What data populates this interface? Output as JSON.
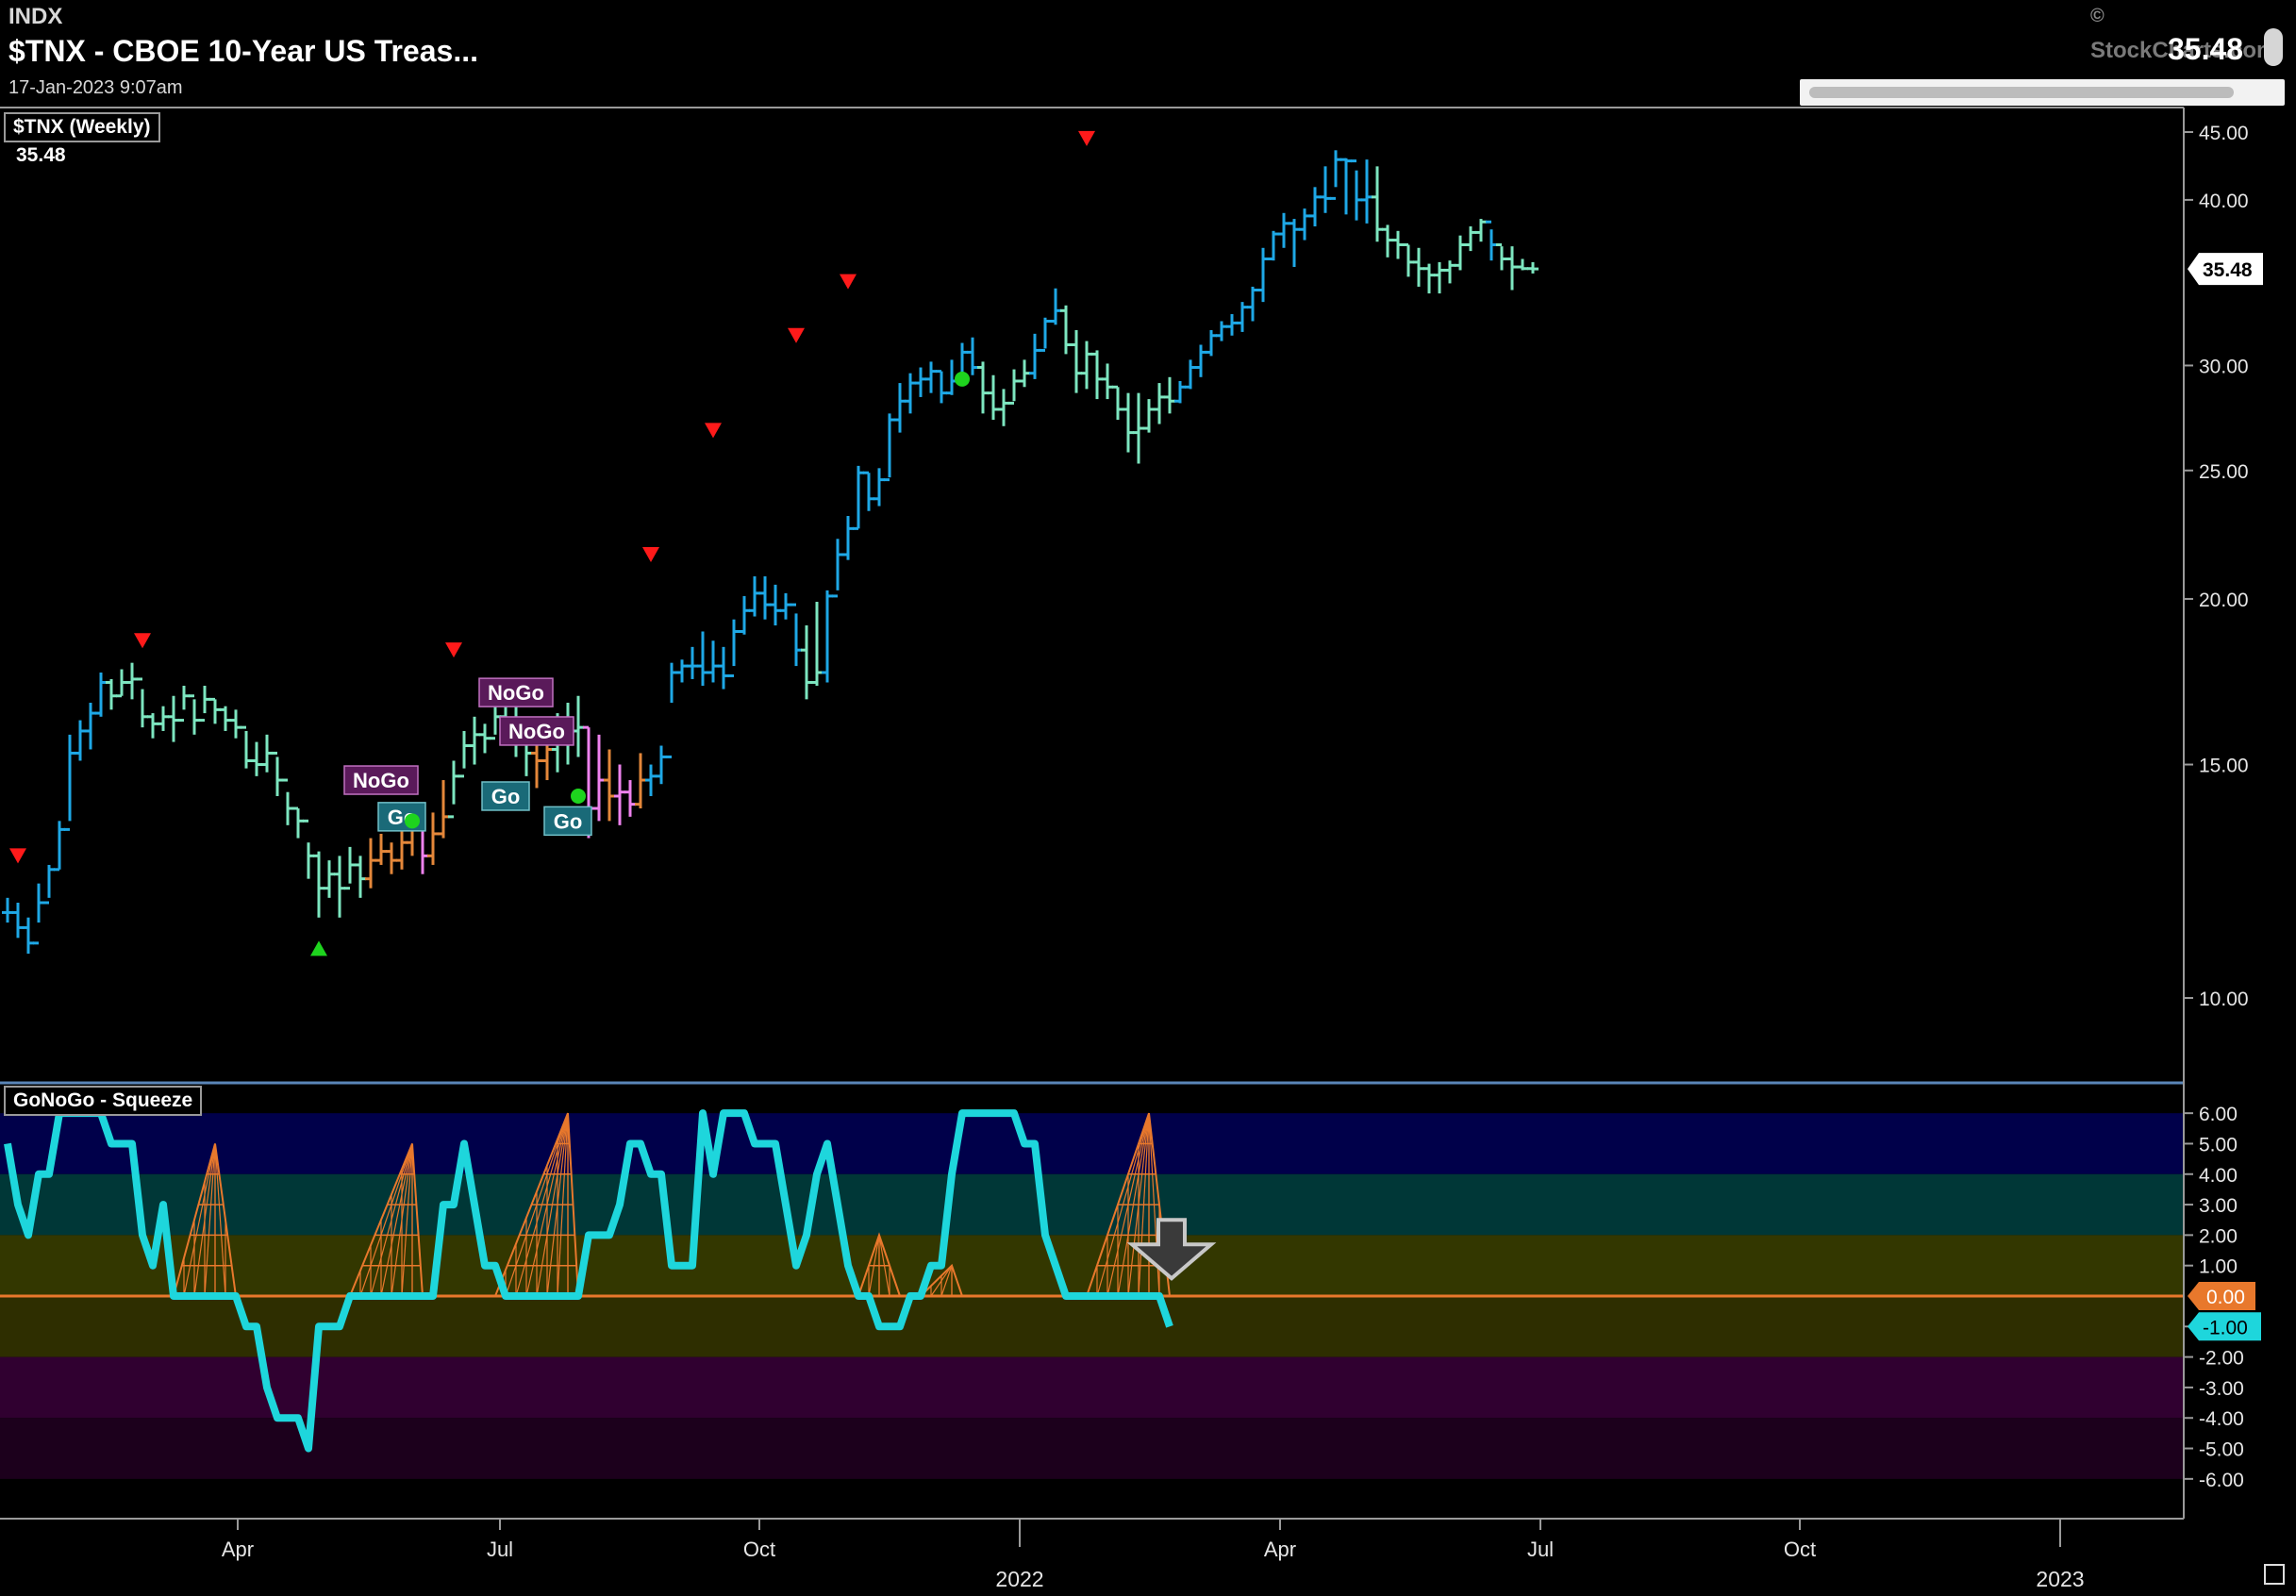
{
  "header": {
    "exchange": "INDX",
    "title": "$TNX - CBOE 10-Year US Treas...",
    "datetime": "17-Jan-2023 9:07am",
    "copyright": "©",
    "brand": "StockCharts.com",
    "last_price": "35.48"
  },
  "colors": {
    "go_strong": "#1ea8e6",
    "go_weak": "#7de6c0",
    "nogo_weak": "#e4873a",
    "nogo_strong": "#ee82ee",
    "signal_down": "#ff1a1a",
    "signal_up": "#1ed41e",
    "osc_line": "#1ed6dc",
    "zero_line": "#e8782c",
    "squeeze_grid": "#e8782c"
  },
  "chart_data": [
    {
      "type": "ohlc",
      "legend": "$TNX (Weekly)",
      "legend_value": "35.48",
      "y_scale": "log",
      "ylim": [
        8.7,
        46.5
      ],
      "y_ticks": [
        "45.00",
        "40.00",
        "30.00",
        "25.00",
        "20.00",
        "15.00",
        "10.00"
      ],
      "y_tick_values": [
        45,
        40,
        30,
        25,
        20,
        15,
        10
      ],
      "last_value_label": "35.48",
      "last_value": 35.48,
      "x_month_labels": [
        "Apr",
        "Jul",
        "Oct",
        "Apr",
        "Jul",
        "Oct"
      ],
      "x_year_labels": [
        "2022",
        "2023"
      ],
      "points": [
        [
          11.9,
          11.4,
          11.6,
          "b"
        ],
        [
          11.8,
          11.1,
          11.3,
          "b"
        ],
        [
          11.5,
          10.8,
          11.0,
          "b"
        ],
        [
          12.2,
          11.4,
          11.8,
          "b"
        ],
        [
          12.6,
          11.9,
          12.5,
          "b"
        ],
        [
          13.6,
          12.5,
          13.4,
          "b"
        ],
        [
          15.8,
          13.6,
          15.3,
          "b"
        ],
        [
          16.2,
          15.1,
          15.9,
          "b"
        ],
        [
          16.7,
          15.4,
          16.4,
          "b"
        ],
        [
          17.6,
          16.3,
          17.3,
          "b"
        ],
        [
          17.4,
          16.5,
          16.9,
          "g"
        ],
        [
          17.7,
          16.9,
          17.3,
          "g"
        ],
        [
          17.9,
          16.8,
          17.4,
          "g"
        ],
        [
          17.1,
          16.0,
          16.3,
          "g"
        ],
        [
          16.4,
          15.7,
          16.1,
          "g"
        ],
        [
          16.6,
          15.9,
          16.3,
          "g"
        ],
        [
          16.9,
          15.6,
          16.2,
          "g"
        ],
        [
          17.2,
          16.5,
          16.9,
          "g"
        ],
        [
          16.8,
          15.8,
          16.2,
          "g"
        ],
        [
          17.2,
          16.4,
          16.8,
          "g"
        ],
        [
          16.8,
          16.1,
          16.5,
          "g"
        ],
        [
          16.6,
          15.9,
          16.2,
          "g"
        ],
        [
          16.5,
          15.7,
          16.0,
          "g"
        ],
        [
          15.9,
          14.9,
          15.1,
          "g"
        ],
        [
          15.6,
          14.7,
          15.0,
          "g"
        ],
        [
          15.8,
          14.8,
          15.3,
          "g"
        ],
        [
          15.2,
          14.2,
          14.6,
          "g"
        ],
        [
          14.3,
          13.5,
          13.9,
          "g"
        ],
        [
          13.9,
          13.2,
          13.6,
          "g"
        ],
        [
          13.1,
          12.3,
          12.8,
          "g"
        ],
        [
          12.9,
          11.5,
          12.1,
          "g"
        ],
        [
          12.7,
          11.9,
          12.4,
          "g"
        ],
        [
          12.8,
          11.5,
          12.1,
          "g"
        ],
        [
          13.0,
          12.2,
          12.6,
          "g"
        ],
        [
          12.8,
          11.9,
          12.3,
          "g"
        ],
        [
          13.2,
          12.1,
          12.7,
          "o"
        ],
        [
          13.3,
          12.6,
          12.9,
          "o"
        ],
        [
          13.1,
          12.4,
          12.7,
          "o"
        ],
        [
          13.5,
          12.5,
          13.1,
          "o"
        ],
        [
          13.6,
          12.8,
          13.4,
          "o"
        ],
        [
          13.4,
          12.4,
          12.8,
          "m"
        ],
        [
          13.8,
          12.6,
          13.3,
          "o"
        ],
        [
          14.6,
          13.2,
          13.7,
          "o"
        ],
        [
          15.1,
          14.0,
          14.7,
          "g"
        ],
        [
          15.9,
          14.9,
          15.5,
          "g"
        ],
        [
          16.3,
          15.0,
          15.8,
          "g"
        ],
        [
          16.1,
          15.3,
          15.7,
          "g"
        ],
        [
          16.6,
          15.8,
          16.3,
          "g"
        ],
        [
          17.2,
          16.2,
          16.8,
          "g"
        ],
        [
          17.1,
          15.2,
          15.9,
          "g"
        ],
        [
          16.2,
          14.7,
          15.3,
          "g"
        ],
        [
          15.8,
          14.4,
          15.1,
          "o"
        ],
        [
          16.1,
          14.6,
          15.4,
          "o"
        ],
        [
          16.4,
          14.8,
          15.6,
          "g"
        ],
        [
          16.7,
          15.0,
          15.9,
          "g"
        ],
        [
          16.9,
          15.2,
          16.0,
          "g"
        ],
        [
          16.0,
          13.2,
          13.9,
          "m"
        ],
        [
          15.8,
          13.6,
          14.6,
          "m"
        ],
        [
          15.4,
          13.6,
          14.2,
          "o"
        ],
        [
          15.0,
          13.5,
          14.3,
          "m"
        ],
        [
          14.6,
          13.7,
          14.0,
          "m"
        ],
        [
          15.3,
          13.9,
          14.6,
          "o"
        ],
        [
          15.0,
          14.2,
          14.7,
          "b"
        ],
        [
          15.5,
          14.5,
          15.2,
          "b"
        ],
        [
          17.9,
          16.7,
          17.6,
          "b"
        ],
        [
          18.0,
          17.3,
          17.8,
          "b"
        ],
        [
          18.4,
          17.4,
          17.8,
          "b"
        ],
        [
          18.9,
          17.2,
          17.6,
          "b"
        ],
        [
          18.6,
          17.3,
          17.8,
          "b"
        ],
        [
          18.4,
          17.1,
          17.5,
          "b"
        ],
        [
          19.3,
          17.8,
          18.9,
          "b"
        ],
        [
          20.1,
          18.8,
          19.6,
          "b"
        ],
        [
          20.8,
          19.4,
          20.2,
          "b"
        ],
        [
          20.8,
          19.3,
          19.8,
          "b"
        ],
        [
          20.5,
          19.1,
          19.6,
          "b"
        ],
        [
          20.2,
          19.3,
          19.8,
          "b"
        ],
        [
          19.5,
          17.8,
          18.3,
          "b"
        ],
        [
          19.1,
          16.8,
          17.3,
          "g"
        ],
        [
          19.9,
          17.2,
          17.6,
          "g"
        ],
        [
          20.3,
          17.3,
          20.1,
          "b"
        ],
        [
          22.2,
          20.3,
          21.6,
          "b"
        ],
        [
          23.1,
          21.4,
          22.6,
          "b"
        ],
        [
          25.2,
          22.6,
          24.9,
          "b"
        ],
        [
          24.9,
          23.3,
          23.8,
          "b"
        ],
        [
          25.1,
          23.5,
          24.6,
          "b"
        ],
        [
          27.6,
          24.7,
          27.3,
          "b"
        ],
        [
          29.1,
          26.7,
          28.2,
          "b"
        ],
        [
          29.6,
          27.6,
          29.1,
          "b"
        ],
        [
          29.9,
          28.4,
          29.3,
          "b"
        ],
        [
          30.2,
          28.6,
          29.7,
          "b"
        ],
        [
          29.7,
          28.1,
          28.6,
          "b"
        ],
        [
          30.3,
          28.5,
          29.2,
          "b"
        ],
        [
          31.2,
          29.2,
          30.7,
          "b"
        ],
        [
          31.5,
          29.5,
          29.9,
          "b"
        ],
        [
          30.2,
          27.6,
          28.6,
          "g"
        ],
        [
          29.5,
          27.3,
          27.8,
          "g"
        ],
        [
          28.8,
          27.0,
          28.1,
          "g"
        ],
        [
          29.8,
          28.2,
          29.2,
          "g"
        ],
        [
          30.3,
          28.9,
          29.6,
          "g"
        ],
        [
          31.7,
          29.3,
          30.8,
          "b"
        ],
        [
          32.6,
          30.9,
          32.4,
          "b"
        ],
        [
          34.3,
          32.2,
          33.0,
          "b"
        ],
        [
          33.3,
          30.6,
          31.1,
          "g"
        ],
        [
          31.9,
          28.6,
          29.6,
          "g"
        ],
        [
          31.3,
          28.8,
          30.6,
          "g"
        ],
        [
          30.8,
          28.3,
          29.3,
          "g"
        ],
        [
          30.1,
          28.3,
          28.9,
          "g"
        ],
        [
          28.9,
          27.3,
          27.8,
          "g"
        ],
        [
          28.6,
          25.8,
          26.7,
          "g"
        ],
        [
          28.6,
          25.3,
          26.9,
          "g"
        ],
        [
          28.3,
          26.7,
          27.8,
          "g"
        ],
        [
          29.1,
          27.1,
          28.4,
          "g"
        ],
        [
          29.4,
          27.6,
          28.2,
          "g"
        ],
        [
          29.2,
          28.1,
          28.9,
          "b"
        ],
        [
          30.3,
          28.8,
          29.9,
          "b"
        ],
        [
          31.1,
          29.4,
          30.7,
          "b"
        ],
        [
          31.9,
          30.5,
          31.6,
          "b"
        ],
        [
          32.4,
          31.3,
          32.1,
          "b"
        ],
        [
          32.8,
          31.6,
          32.3,
          "b"
        ],
        [
          33.5,
          31.8,
          33.2,
          "b"
        ],
        [
          34.4,
          32.4,
          34.2,
          "b"
        ],
        [
          36.8,
          33.5,
          36.1,
          "b"
        ],
        [
          37.9,
          36.0,
          37.7,
          "b"
        ],
        [
          39.1,
          36.8,
          38.4,
          "b"
        ],
        [
          38.7,
          35.6,
          38.0,
          "b"
        ],
        [
          39.4,
          37.3,
          38.9,
          "b"
        ],
        [
          40.9,
          38.2,
          40.2,
          "b"
        ],
        [
          42.4,
          39.1,
          40.1,
          "b"
        ],
        [
          43.6,
          40.9,
          42.9,
          "b"
        ],
        [
          43.0,
          39.0,
          42.8,
          "b"
        ],
        [
          42.1,
          38.6,
          40.0,
          "b"
        ],
        [
          42.9,
          38.4,
          40.2,
          "b"
        ],
        [
          42.4,
          37.2,
          38.0,
          "g"
        ],
        [
          38.3,
          36.2,
          37.3,
          "g"
        ],
        [
          37.9,
          36.1,
          37.0,
          "g"
        ],
        [
          37.0,
          35.0,
          35.9,
          "g"
        ],
        [
          36.8,
          34.4,
          35.5,
          "g"
        ],
        [
          35.8,
          34.0,
          35.1,
          "g"
        ],
        [
          35.9,
          34.0,
          35.4,
          "g"
        ],
        [
          36.0,
          34.6,
          35.7,
          "g"
        ],
        [
          37.6,
          35.4,
          37.0,
          "g"
        ],
        [
          38.2,
          36.6,
          37.8,
          "g"
        ],
        [
          38.7,
          37.2,
          38.5,
          "g"
        ],
        [
          38.0,
          36.0,
          37.0,
          "b"
        ],
        [
          36.9,
          35.4,
          36.1,
          "g"
        ],
        [
          36.9,
          34.2,
          35.6,
          "g"
        ],
        [
          36.1,
          35.4,
          35.5,
          "g"
        ],
        [
          35.9,
          35.2,
          35.48,
          "g"
        ]
      ],
      "annotations": [
        {
          "kind": "signal_down",
          "bar": 1,
          "value": 12.8
        },
        {
          "kind": "signal_down",
          "bar": 13,
          "value": 18.6
        },
        {
          "kind": "signal_up",
          "bar": 30,
          "value": 10.9
        },
        {
          "kind": "label",
          "text": "NoGo",
          "bar": 36,
          "value": 14.6,
          "style": "nogo"
        },
        {
          "kind": "label",
          "text": "Go",
          "bar": 38,
          "value": 13.7,
          "style": "go"
        },
        {
          "kind": "dot",
          "bar": 39,
          "value": 13.6
        },
        {
          "kind": "signal_down",
          "bar": 43,
          "value": 18.3
        },
        {
          "kind": "label",
          "text": "NoGo",
          "bar": 49,
          "value": 17.0,
          "style": "nogo"
        },
        {
          "kind": "label",
          "text": "Go",
          "bar": 48,
          "value": 14.2,
          "style": "go"
        },
        {
          "kind": "label",
          "text": "NoGo",
          "bar": 51,
          "value": 15.9,
          "style": "nogo"
        },
        {
          "kind": "label",
          "text": "Go",
          "bar": 54,
          "value": 13.6,
          "style": "go"
        },
        {
          "kind": "dot",
          "bar": 55,
          "value": 14.2
        },
        {
          "kind": "signal_down",
          "bar": 62,
          "value": 21.6
        },
        {
          "kind": "signal_down",
          "bar": 68,
          "value": 26.8
        },
        {
          "kind": "signal_down",
          "bar": 76,
          "value": 31.6
        },
        {
          "kind": "signal_down",
          "bar": 81,
          "value": 34.7
        },
        {
          "kind": "dot",
          "bar": 92,
          "value": 29.3
        },
        {
          "kind": "signal_down",
          "bar": 104,
          "value": 44.5
        }
      ]
    },
    {
      "type": "line",
      "legend": "GoNoGo - Squeeze",
      "ylim": [
        -6.5,
        6.5
      ],
      "y_ticks": [
        "6.00",
        "5.00",
        "4.00",
        "3.00",
        "2.00",
        "1.00",
        "-1.00",
        "-2.00",
        "-3.00",
        "-4.00",
        "-5.00",
        "-6.00"
      ],
      "y_tick_values": [
        6,
        5,
        4,
        3,
        2,
        1,
        -1,
        -2,
        -3,
        -4,
        -5,
        -6
      ],
      "zero_label": "0.00",
      "last_label": "-1.00",
      "last_value": -1.0,
      "values": [
        5,
        3,
        2,
        4,
        4,
        6,
        6,
        6,
        6,
        6,
        5,
        5,
        5,
        2,
        1,
        3,
        0,
        0,
        0,
        0,
        0,
        0,
        0,
        -1,
        -1,
        -3,
        -4,
        -4,
        -4,
        -5,
        -1,
        -1,
        -1,
        0,
        0,
        0,
        0,
        0,
        0,
        0,
        0,
        0,
        3,
        3,
        5,
        3,
        1,
        1,
        0,
        0,
        0,
        0,
        0,
        0,
        0,
        0,
        2,
        2,
        2,
        3,
        5,
        5,
        4,
        4,
        1,
        1,
        1,
        6,
        4,
        6,
        6,
        6,
        5,
        5,
        5,
        3,
        1,
        2,
        4,
        5,
        3,
        1,
        0,
        0,
        -1,
        -1,
        -1,
        0,
        0,
        1,
        1,
        4,
        6,
        6,
        6,
        6,
        6,
        6,
        5,
        5,
        2,
        1,
        0,
        0,
        0,
        0,
        0,
        0,
        0,
        0,
        0,
        0,
        -1
      ],
      "zones": [
        {
          "from": 4,
          "to": 6,
          "color": "#00004a"
        },
        {
          "from": 2,
          "to": 4,
          "color": "#003737"
        },
        {
          "from": 0,
          "to": 2,
          "color": "#333700"
        },
        {
          "from": -2,
          "to": 0,
          "color": "#2e2e00"
        },
        {
          "from": -4,
          "to": -2,
          "color": "#300030"
        },
        {
          "from": -6,
          "to": -4,
          "color": "#1c001c"
        }
      ],
      "squeezes": [
        {
          "start": 16,
          "end": 22,
          "peak": 20,
          "height": 5
        },
        {
          "start": 33,
          "end": 40,
          "peak": 39,
          "height": 5
        },
        {
          "start": 47,
          "end": 55,
          "peak": 54,
          "height": 6
        },
        {
          "start": 82,
          "end": 86,
          "peak": 84,
          "height": 2
        },
        {
          "start": 88,
          "end": 92,
          "peak": 91,
          "height": 1
        },
        {
          "start": 104,
          "end": 112,
          "peak": 110,
          "height": 6
        }
      ]
    }
  ]
}
